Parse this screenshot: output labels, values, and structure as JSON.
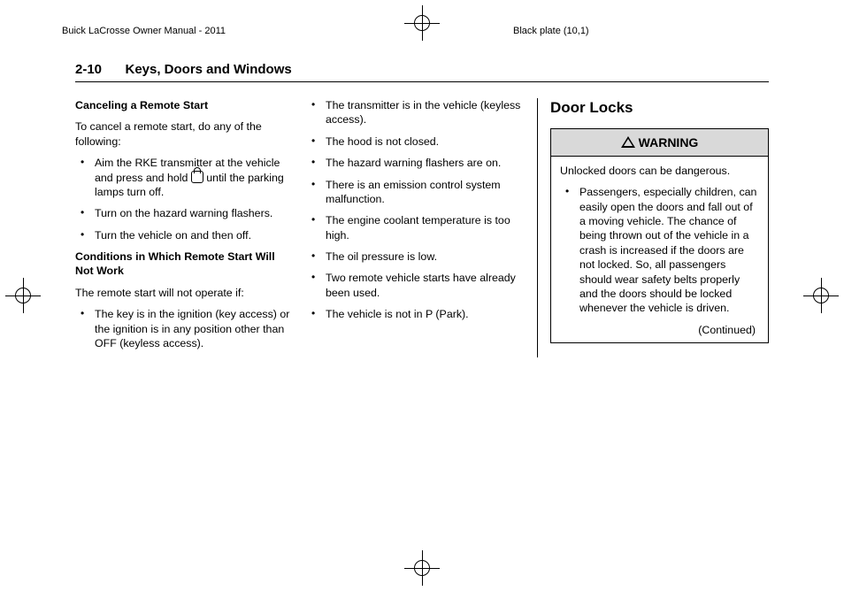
{
  "print": {
    "left_label": "Buick LaCrosse Owner Manual - 2011",
    "right_label": "Black plate (10,1)"
  },
  "page": {
    "number": "2-10",
    "chapter_title": "Keys, Doors and Windows"
  },
  "col1": {
    "h1": "Canceling a Remote Start",
    "p1": "To cancel a remote start, do any of the following:",
    "list1": [
      "Aim the RKE transmitter at the vehicle and press and hold ",
      "Turn on the hazard warning flashers.",
      "Turn the vehicle on and then off."
    ],
    "list1_item0_tail": " until the parking lamps turn off.",
    "h2": "Conditions in Which Remote Start Will Not Work",
    "p2": "The remote start will not operate if:",
    "list2": [
      "The key is in the ignition (key access) or the ignition is in any position other than OFF (keyless access)."
    ]
  },
  "col2": {
    "list": [
      "The transmitter is in the vehicle (keyless access).",
      "The hood is not closed.",
      "The hazard warning flashers are on.",
      "There is an emission control system malfunction.",
      "The engine coolant temperature is too high.",
      "The oil pressure is low.",
      "Two remote vehicle starts have already been used.",
      "The vehicle is not in P (Park)."
    ]
  },
  "col3": {
    "section_title": "Door Locks",
    "warning_label": "WARNING",
    "warning_intro": "Unlocked doors can be dangerous.",
    "warning_list": [
      "Passengers, especially children, can easily open the doors and fall out of a moving vehicle. The chance of being thrown out of the vehicle in a crash is increased if the doors are not locked. So, all passengers should wear safety belts properly and the doors should be locked whenever the vehicle is driven."
    ],
    "continued": "(Continued)"
  }
}
